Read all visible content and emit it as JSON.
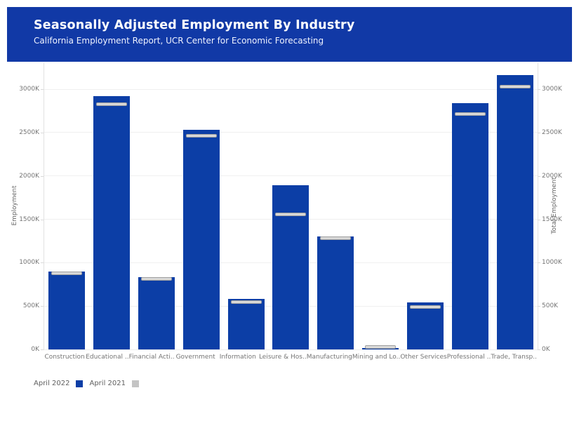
{
  "header": {
    "title": "Seasonally Adjusted Employment By Industry",
    "subtitle": "California Employment Report, UCR Center for Economic Forecasting",
    "background_color": "#1139a6"
  },
  "chart_data": {
    "type": "bar",
    "title": "Seasonally Adjusted Employment By Industry",
    "subtitle": "California Employment Report, UCR Center for Economic Forecasting",
    "categories": [
      "Construction",
      "Educational ..",
      "Financial Acti..",
      "Government",
      "Information",
      "Leisure & Hos..",
      "Manufacturing",
      "Mining and Lo..",
      "Other Services",
      "Professional ..",
      "Trade, Transp.."
    ],
    "series": [
      {
        "name": "April 2022",
        "mark": "bar",
        "color": "#0c3ea6",
        "values_thousands": [
          895,
          2920,
          830,
          2535,
          580,
          1890,
          1305,
          20,
          540,
          2840,
          3160
        ]
      },
      {
        "name": "April 2021",
        "mark": "tick",
        "color": "#d8d8d8",
        "border_color": "#9f9f9f",
        "values_thousands": [
          875,
          2830,
          815,
          2465,
          545,
          1560,
          1280,
          26,
          490,
          2715,
          3030
        ]
      }
    ],
    "ylabel_left": "Employment",
    "ylabel_right": "Total Employment",
    "y_ticks": [
      {
        "label": "0K",
        "value": 0
      },
      {
        "label": "500K",
        "value": 500
      },
      {
        "label": "1000K",
        "value": 1000
      },
      {
        "label": "1500K",
        "value": 1500
      },
      {
        "label": "2000K",
        "value": 2000
      },
      {
        "label": "2500K",
        "value": 2500
      },
      {
        "label": "3000K",
        "value": 3000
      }
    ],
    "ylim": [
      0,
      3300
    ],
    "units": "thousands of jobs (K)",
    "grid": true,
    "legend_position": "bottom-left"
  },
  "legend": {
    "items": [
      {
        "label": "April 2022",
        "color": "#0c3ea6"
      },
      {
        "label": "April 2021",
        "color": "#c4c4c4"
      }
    ]
  }
}
